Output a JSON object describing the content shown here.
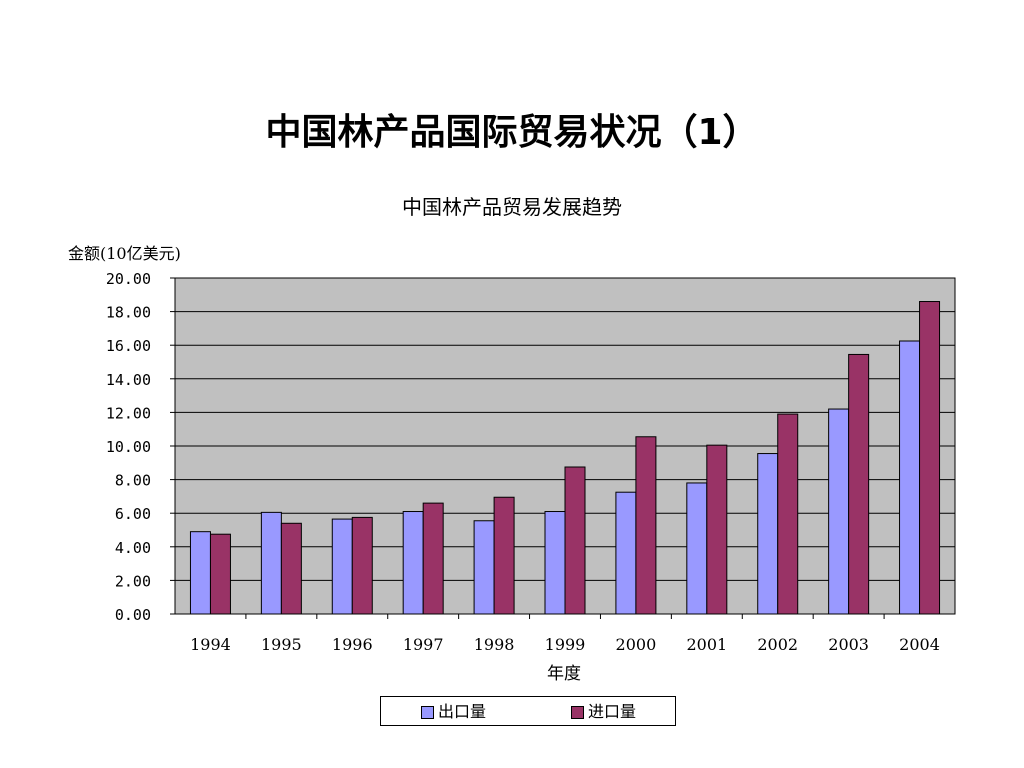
{
  "slide": {
    "title": "中国林产品国际贸易状况（1）"
  },
  "chart_data": {
    "type": "bar",
    "title": "中国林产品贸易发展趋势",
    "xlabel": "年度",
    "ylabel": "金额(10亿美元)",
    "ylim": [
      0,
      20
    ],
    "yticks": [
      "0.00",
      "2.00",
      "4.00",
      "6.00",
      "8.00",
      "10.00",
      "12.00",
      "14.00",
      "16.00",
      "18.00",
      "20.00"
    ],
    "grid": true,
    "legend_position": "bottom",
    "categories": [
      "1994",
      "1995",
      "1996",
      "1997",
      "1998",
      "1999",
      "2000",
      "2001",
      "2002",
      "2003",
      "2004"
    ],
    "series": [
      {
        "name": "出口量",
        "color": "#9999ff",
        "values": [
          4.9,
          6.05,
          5.65,
          6.1,
          5.55,
          6.1,
          7.25,
          7.8,
          9.55,
          12.2,
          16.25
        ]
      },
      {
        "name": "进口量",
        "color": "#993366",
        "values": [
          4.75,
          5.4,
          5.75,
          6.6,
          6.95,
          8.75,
          10.55,
          10.05,
          11.9,
          15.45,
          18.6
        ]
      }
    ],
    "plot_background": "#c0c0c0"
  }
}
